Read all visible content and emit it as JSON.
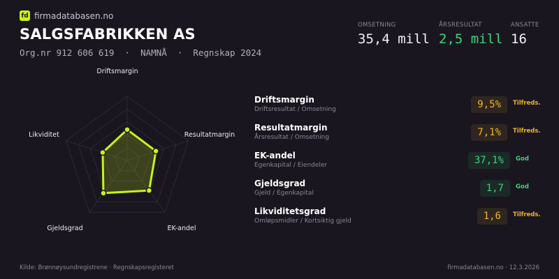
{
  "brand": {
    "logo_text": "fd",
    "name": "firmadatabasen.no"
  },
  "company": {
    "name": "SALGSFABRIKKEN AS",
    "subtitle": "Org.nr 912 606 619  ·  NAMNÅ  ·  Regnskap 2024"
  },
  "kpis": [
    {
      "label": "OMSETNING",
      "value": "35,4 mill",
      "color": "#f2f0f5"
    },
    {
      "label": "ÅRSRESULTAT",
      "value": "2,5 mill",
      "color": "#3ed27a"
    },
    {
      "label": "ANSATTE",
      "value": "16",
      "color": "#f2f0f5"
    }
  ],
  "chart_data": {
    "type": "radar",
    "axes": [
      "Driftsmargin",
      "Resultatmargin",
      "EK-andel",
      "Gjeldsgrad",
      "Likviditet"
    ],
    "values": [
      0.48,
      0.47,
      0.58,
      0.63,
      0.4
    ],
    "range": [
      0,
      1
    ],
    "rings": 5,
    "color": "#c6f31a"
  },
  "ratios": [
    {
      "name": "Driftsmargin",
      "desc": "Driftsresultat / Omsetning",
      "value": "9,5%",
      "status": "Tilfreds.",
      "level": "ok"
    },
    {
      "name": "Resultatmargin",
      "desc": "Årsresultat / Omsetning",
      "value": "7,1%",
      "status": "Tilfreds.",
      "level": "ok"
    },
    {
      "name": "EK-andel",
      "desc": "Egenkapital / Eiendeler",
      "value": "37,1%",
      "status": "God",
      "level": "good"
    },
    {
      "name": "Gjeldsgrad",
      "desc": "Gjeld / Egenkapital",
      "value": "1,7",
      "status": "God",
      "level": "good"
    },
    {
      "name": "Likviditetsgrad",
      "desc": "Omløpsmidler / Kortsiktig gjeld",
      "value": "1,6",
      "status": "Tilfreds.",
      "level": "ok"
    }
  ],
  "colors": {
    "ok": "#f0b429",
    "ok_bg": "#2e2620",
    "good": "#3ed27a",
    "good_bg": "#1b2a26",
    "background": "#1a1620"
  },
  "footer": {
    "source": "Kilde: Brønnøysundregistrene · Regnskapsregisteret",
    "site_date": "firmadatabasen.no · 12.3.2026"
  }
}
